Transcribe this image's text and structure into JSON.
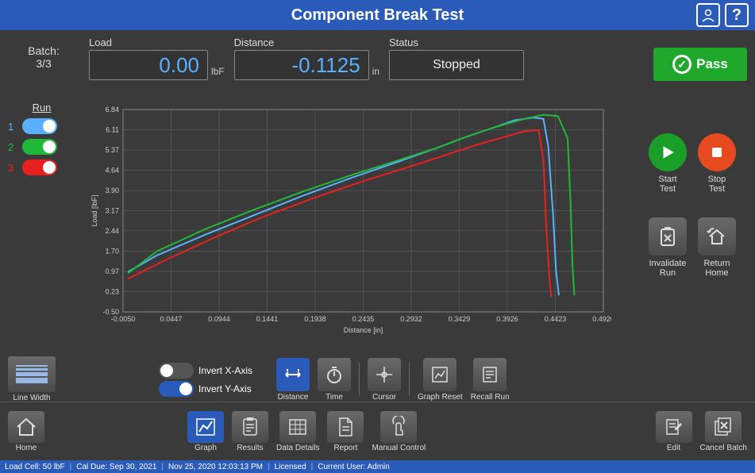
{
  "title": "Component Break Test",
  "batch": {
    "label": "Batch:",
    "value": "3/3"
  },
  "load": {
    "label": "Load",
    "value": "0.00",
    "unit": "lbF"
  },
  "distance": {
    "label": "Distance",
    "value": "-0.1125",
    "unit": "in"
  },
  "status": {
    "label": "Status",
    "value": "Stopped"
  },
  "pass": {
    "label": "Pass"
  },
  "runs": {
    "title": "Run",
    "items": [
      {
        "num": "1",
        "color": "#5ab0ff",
        "on": true
      },
      {
        "num": "2",
        "color": "#1fb838",
        "on": true
      },
      {
        "num": "3",
        "color": "#e82020",
        "on": true
      }
    ]
  },
  "chart": {
    "xlabel": "Distance [in]",
    "ylabel": "Load [lbF]",
    "xmin": -0.005,
    "xmax": 0.492,
    "ymin": -0.5,
    "ymax": 6.84,
    "xticks": [
      -0.005,
      0.0447,
      0.0944,
      0.1441,
      0.1938,
      0.2435,
      0.2932,
      0.3429,
      0.3926,
      0.4423,
      0.492
    ],
    "yticks": [
      -0.5,
      0.23,
      0.97,
      1.7,
      2.44,
      3.17,
      3.9,
      4.64,
      5.37,
      6.11,
      6.84
    ],
    "background": "#3a3a3a",
    "grid_color": "#666666",
    "series": [
      {
        "name": "run1",
        "color": "#5ab0ff",
        "width": 2,
        "x": [
          0.0,
          0.03,
          0.08,
          0.13,
          0.18,
          0.23,
          0.28,
          0.32,
          0.35,
          0.38,
          0.4,
          0.42,
          0.43,
          0.435,
          0.44,
          0.443,
          0.446
        ],
        "y": [
          0.95,
          1.55,
          2.3,
          3.0,
          3.7,
          4.35,
          4.95,
          5.45,
          5.85,
          6.2,
          6.45,
          6.55,
          6.5,
          5.5,
          3.0,
          1.0,
          0.1
        ]
      },
      {
        "name": "run2",
        "color": "#1fb838",
        "width": 2,
        "x": [
          0.0,
          0.03,
          0.08,
          0.13,
          0.18,
          0.23,
          0.28,
          0.32,
          0.35,
          0.38,
          0.41,
          0.43,
          0.445,
          0.455,
          0.458,
          0.46,
          0.462
        ],
        "y": [
          0.9,
          1.7,
          2.5,
          3.2,
          3.85,
          4.45,
          5.0,
          5.45,
          5.85,
          6.2,
          6.5,
          6.65,
          6.6,
          5.8,
          3.5,
          1.2,
          0.1
        ]
      },
      {
        "name": "run3",
        "color": "#e82020",
        "width": 2,
        "x": [
          0.0,
          0.04,
          0.09,
          0.14,
          0.19,
          0.24,
          0.29,
          0.33,
          0.36,
          0.39,
          0.41,
          0.425,
          0.43,
          0.433,
          0.436,
          0.438
        ],
        "y": [
          0.7,
          1.4,
          2.2,
          2.95,
          3.6,
          4.2,
          4.75,
          5.2,
          5.55,
          5.85,
          6.05,
          6.1,
          5.0,
          2.5,
          0.8,
          0.05
        ]
      }
    ]
  },
  "right_buttons": {
    "start": "Start\nTest",
    "stop": "Stop\nTest",
    "invalidate": "Invalidate\nRun",
    "return": "Return\nHome"
  },
  "toolbar": {
    "linewidth": "Line Width",
    "invert_x": "Invert X-Axis",
    "invert_y": "Invert Y-Axis",
    "invert_x_on": false,
    "invert_y_on": true,
    "distance": "Distance",
    "time": "Time",
    "cursor": "Cursor",
    "graph_reset": "Graph Reset",
    "recall": "Recall Run"
  },
  "bottom": {
    "home": "Home",
    "graph": "Graph",
    "results": "Results",
    "data_details": "Data Details",
    "report": "Report",
    "manual": "Manual Control",
    "edit": "Edit",
    "cancel": "Cancel Batch"
  },
  "statusbar": {
    "load_cell": "Load Cell: 50 lbF",
    "cal_due": "Cal Due: Sep 30, 2021",
    "datetime": "Nov 25, 2020 12:03:13 PM",
    "license": "Licensed",
    "user": "Current User: Admin"
  }
}
